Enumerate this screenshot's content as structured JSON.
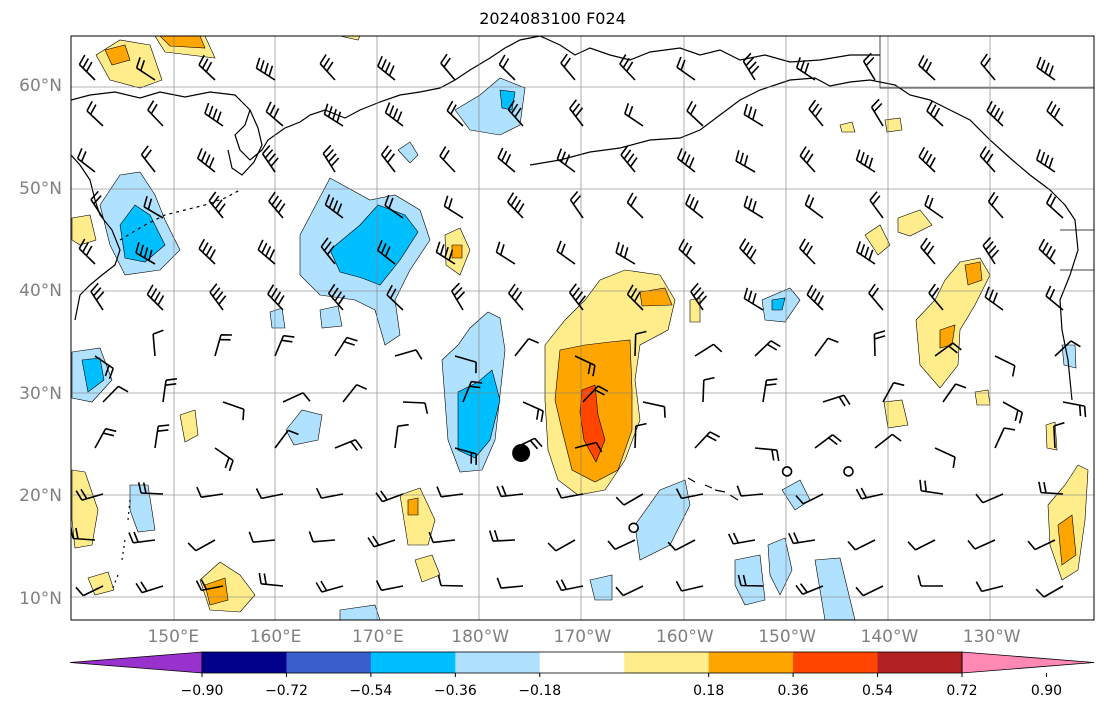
{
  "title": "2024083100 F024",
  "lat_labels": [
    "60°N",
    "50°N",
    "40°N",
    "30°N",
    "20°N",
    "10°N"
  ],
  "lon_labels": [
    "150°E",
    "160°E",
    "170°E",
    "180°W",
    "170°W",
    "160°W",
    "150°W",
    "140°W",
    "130°W"
  ],
  "colorbar": {
    "colors": [
      "#9932cc",
      "#00008b",
      "#3a5fcd",
      "#00bfff",
      "#b0e2ff",
      "#ffffff",
      "#ffec8b",
      "#ffa500",
      "#ff4500",
      "#b22222",
      "#ff88b4"
    ],
    "tick_labels": [
      "−0.90",
      "−0.72",
      "−0.54",
      "−0.36",
      "−0.18",
      "0.18",
      "0.36",
      "0.54",
      "0.72",
      "0.90"
    ]
  },
  "markers": {
    "storm_center": {
      "lon": -176,
      "lat": 24.3
    },
    "open_circles": [
      {
        "lon": -165,
        "lat": 17
      },
      {
        "lon": -150,
        "lat": 22.5
      },
      {
        "lon": -144,
        "lat": 22.5
      }
    ]
  }
}
